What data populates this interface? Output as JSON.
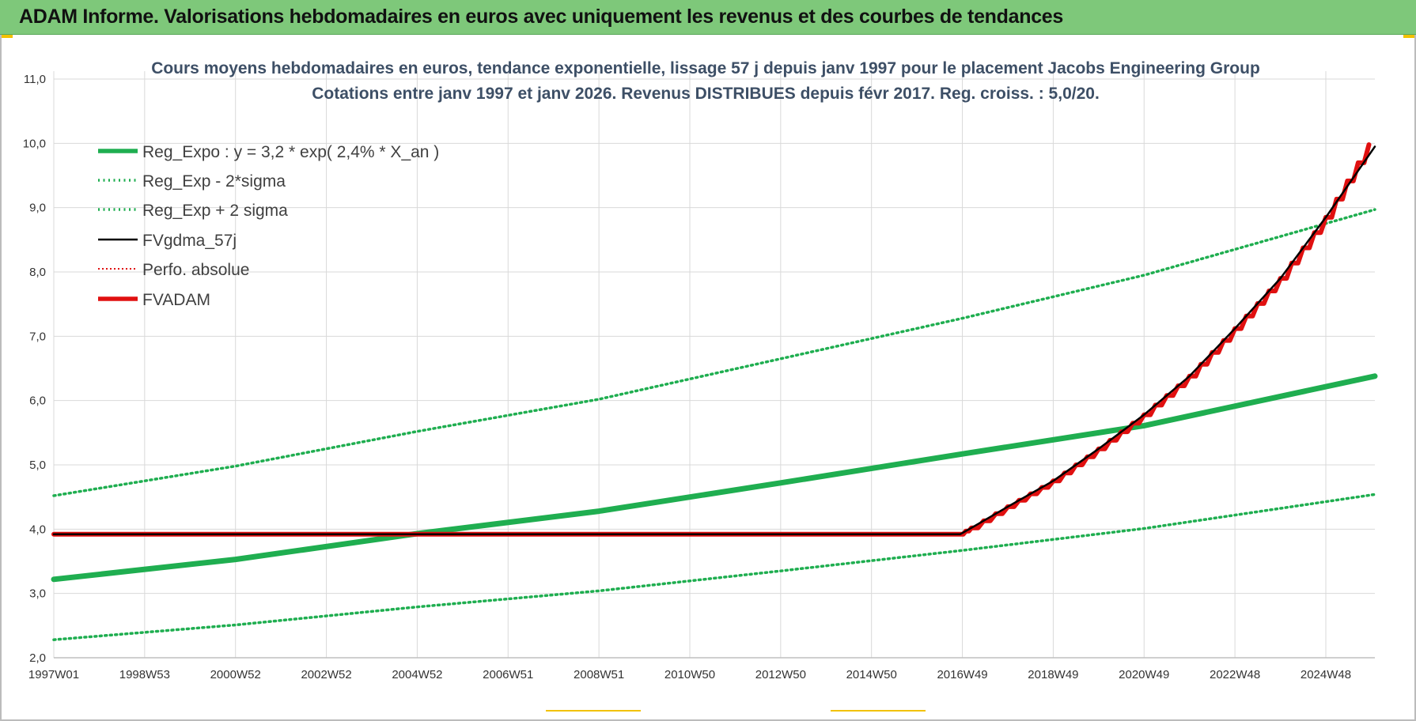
{
  "header": {
    "title": "ADAM Informe. Valorisations hebdomadaires en euros avec uniquement les revenus et des courbes de tendances"
  },
  "colors": {
    "header_bg": "#7ec87a",
    "reg_expo": "#1fae50",
    "sigma": "#1fae50",
    "fvgdma": "#000000",
    "perfo": "#e01010",
    "fvadam": "#e01010",
    "grid": "#d9d9d9"
  },
  "chart_data": {
    "type": "line",
    "title_lines": [
      "Cours moyens hebdomadaires en euros, tendance exponentielle, lissage 57 j depuis janv 1997 pour le placement Jacobs Engineering Group",
      "Cotations entre janv 1997 et janv 2026. Revenus DISTRIBUES depuis févr 2017. Reg. croiss. : 5,0/20."
    ],
    "xlabel": "",
    "ylabel": "",
    "ylim": [
      2.0,
      11.0
    ],
    "xlim": [
      1997.0,
      2026.08
    ],
    "y_ticks": [
      "2,0",
      "3,0",
      "4,0",
      "5,0",
      "6,0",
      "7,0",
      "8,0",
      "9,0",
      "10,0",
      "11,0"
    ],
    "x_ticks": [
      {
        "label": "1997W01",
        "x": 1997.0
      },
      {
        "label": "1998W53",
        "x": 1999.0
      },
      {
        "label": "2000W52",
        "x": 2001.0
      },
      {
        "label": "2002W52",
        "x": 2003.0
      },
      {
        "label": "2004W52",
        "x": 2005.0
      },
      {
        "label": "2006W51",
        "x": 2007.0
      },
      {
        "label": "2008W51",
        "x": 2009.0
      },
      {
        "label": "2010W50",
        "x": 2011.0
      },
      {
        "label": "2012W50",
        "x": 2013.0
      },
      {
        "label": "2014W50",
        "x": 2015.0
      },
      {
        "label": "2016W49",
        "x": 2017.0
      },
      {
        "label": "2018W49",
        "x": 2019.0
      },
      {
        "label": "2020W49",
        "x": 2021.0
      },
      {
        "label": "2022W48",
        "x": 2023.0
      },
      {
        "label": "2024W48",
        "x": 2025.0
      }
    ],
    "grid": true,
    "legend_position": "top-left",
    "series": [
      {
        "name": "Reg_Expo : y = 3,2 * exp( 2,4% *  X_an )",
        "style": "solid-thick",
        "x": [
          1997.0,
          2001.0,
          2005.0,
          2009.0,
          2013.0,
          2017.0,
          2021.0,
          2026.08
        ],
        "y": [
          3.22,
          3.53,
          3.93,
          4.28,
          4.72,
          5.17,
          5.61,
          6.38
        ]
      },
      {
        "name": "Reg_Exp - 2*sigma",
        "style": "dotted",
        "x": [
          1997.0,
          2001.0,
          2005.0,
          2009.0,
          2013.0,
          2017.0,
          2021.0,
          2026.08
        ],
        "y": [
          2.28,
          2.51,
          2.79,
          3.04,
          3.35,
          3.67,
          4.01,
          4.54
        ]
      },
      {
        "name": "Reg_Exp + 2 sigma",
        "style": "dotted",
        "x": [
          1997.0,
          2001.0,
          2005.0,
          2009.0,
          2013.0,
          2017.0,
          2021.0,
          2026.08
        ],
        "y": [
          4.52,
          4.98,
          5.52,
          6.02,
          6.65,
          7.28,
          7.95,
          8.97
        ]
      },
      {
        "name": "FVgdma_57j",
        "style": "solid-thin",
        "x": [
          1997.0,
          2016.95,
          2017.2,
          2018.0,
          2019.0,
          2020.0,
          2021.0,
          2022.0,
          2023.0,
          2024.0,
          2025.0,
          2026.08
        ],
        "y": [
          3.92,
          3.92,
          4.02,
          4.35,
          4.75,
          5.25,
          5.78,
          6.38,
          7.12,
          7.9,
          8.85,
          9.95
        ]
      },
      {
        "name": "Perfo. absolue",
        "style": "dotted-thin",
        "x": [],
        "y": []
      },
      {
        "name": "FVADAM",
        "style": "solid-thick-step",
        "x": [
          1997.0,
          2016.95,
          2017.2,
          2018.0,
          2019.0,
          2020.0,
          2021.0,
          2022.0,
          2023.0,
          2024.0,
          2025.0,
          2025.95
        ],
        "y": [
          3.92,
          3.92,
          4.02,
          4.35,
          4.75,
          5.25,
          5.78,
          6.38,
          7.12,
          7.9,
          8.85,
          9.98
        ]
      }
    ]
  }
}
